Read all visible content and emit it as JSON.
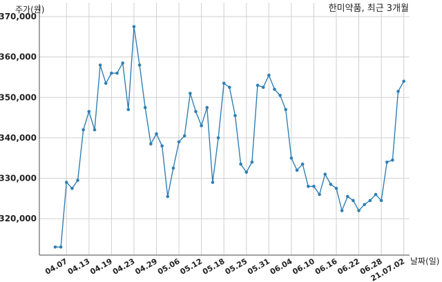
{
  "chart_data": {
    "type": "line",
    "title": "한미약품, 최근 3개월",
    "xlabel": "날짜(일)",
    "ylabel": "주가(원)",
    "ylim": [
      311000,
      370000
    ],
    "yticks": [
      {
        "value": 320000,
        "label": "320,000"
      },
      {
        "value": 330000,
        "label": "330,000"
      },
      {
        "value": 340000,
        "label": "340,000"
      },
      {
        "value": 350000,
        "label": "350,000"
      },
      {
        "value": 360000,
        "label": "360,000"
      },
      {
        "value": 370000,
        "label": "370,000"
      }
    ],
    "xticks": [
      {
        "index": 2,
        "label": "04.07"
      },
      {
        "index": 6,
        "label": "04.13"
      },
      {
        "index": 10,
        "label": "04.19"
      },
      {
        "index": 14,
        "label": "04.23"
      },
      {
        "index": 18,
        "label": "04.29"
      },
      {
        "index": 22,
        "label": "05.06"
      },
      {
        "index": 26,
        "label": "05.12"
      },
      {
        "index": 30,
        "label": "05.18"
      },
      {
        "index": 34,
        "label": "05.25"
      },
      {
        "index": 38,
        "label": "05.31"
      },
      {
        "index": 42,
        "label": "06.04"
      },
      {
        "index": 46,
        "label": "06.10"
      },
      {
        "index": 50,
        "label": "06.16"
      },
      {
        "index": 54,
        "label": "06.22"
      },
      {
        "index": 58,
        "label": "06.28"
      },
      {
        "index": 62,
        "label": "21.07.02"
      }
    ],
    "grid": true,
    "color": "#2e7fb3",
    "series": [
      {
        "values": [
          313000,
          313000,
          329000,
          327500,
          329500,
          342000,
          346500,
          342000,
          358000,
          353500,
          356000,
          356000,
          358500,
          347000,
          367500,
          358000,
          347500,
          338500,
          341000,
          338000,
          325500,
          332500,
          339000,
          340500,
          351000,
          346500,
          343000,
          347500,
          329000,
          340000,
          353500,
          352500,
          345500,
          333500,
          331500,
          334000,
          353000,
          352500,
          355500,
          352000,
          350500,
          347000,
          335000,
          332000,
          333500,
          328000,
          328000,
          326000,
          331000,
          328500,
          327500,
          322000,
          325500,
          324500,
          322000,
          323500,
          324500,
          326000,
          324500,
          334000,
          334500,
          351500,
          354000
        ]
      }
    ]
  }
}
